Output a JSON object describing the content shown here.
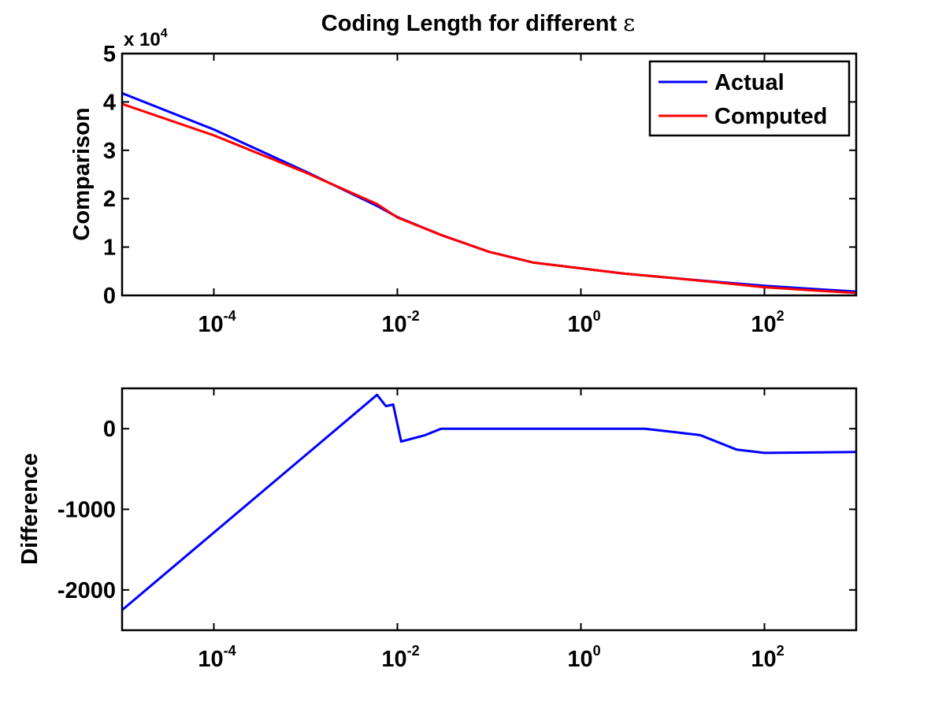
{
  "figure": {
    "title_text": "Coding Length for different ",
    "title_symbol": "ε"
  },
  "chart_data": [
    {
      "type": "line",
      "title": "Coding Length for different ε",
      "xlabel": "",
      "ylabel": "Comparison",
      "xscale": "log",
      "xlim": [
        1e-05,
        1000
      ],
      "ylim": [
        0,
        50000
      ],
      "y_multiplier": "x 10^4",
      "y_multiplier_base": "x 10",
      "y_multiplier_exp": "4",
      "yticks": [
        0,
        1,
        2,
        3,
        4,
        5
      ],
      "xticks": [
        {
          "value": 0.0001,
          "base": "10",
          "exp": "-4"
        },
        {
          "value": 0.01,
          "base": "10",
          "exp": "-2"
        },
        {
          "value": 1,
          "base": "10",
          "exp": "0"
        },
        {
          "value": 100,
          "base": "10",
          "exp": "2"
        }
      ],
      "grid": false,
      "legend_position": "top-right",
      "series": [
        {
          "name": "Actual",
          "color": "#0000ff",
          "x": [
            1e-05,
            0.0001,
            0.001,
            0.006,
            0.01,
            0.03,
            0.1,
            0.3,
            1,
            3,
            10,
            30,
            100,
            300,
            1000
          ],
          "y": [
            41800,
            34300,
            25600,
            18500,
            16200,
            12500,
            9000,
            6800,
            5600,
            4500,
            3600,
            2800,
            2000,
            1400,
            800
          ]
        },
        {
          "name": "Computed",
          "color": "#ff0000",
          "x": [
            1e-05,
            0.0001,
            0.001,
            0.006,
            0.01,
            0.03,
            0.1,
            0.3,
            1,
            3,
            10,
            30,
            100,
            300,
            1000
          ],
          "y": [
            39600,
            33100,
            25400,
            18900,
            16100,
            12500,
            9000,
            6800,
            5600,
            4500,
            3600,
            2700,
            1700,
            1100,
            500
          ]
        }
      ]
    },
    {
      "type": "line",
      "title": "",
      "xlabel": "",
      "ylabel": "Difference",
      "xscale": "log",
      "xlim": [
        1e-05,
        1000
      ],
      "ylim": [
        -2500,
        500
      ],
      "yticks": [
        -2000,
        -1000,
        0
      ],
      "ytick_labels": [
        "-2000",
        "-1000",
        "0"
      ],
      "xticks": [
        {
          "value": 0.0001,
          "base": "10",
          "exp": "-4"
        },
        {
          "value": 0.01,
          "base": "10",
          "exp": "-2"
        },
        {
          "value": 1,
          "base": "10",
          "exp": "0"
        },
        {
          "value": 100,
          "base": "10",
          "exp": "2"
        }
      ],
      "grid": false,
      "series": [
        {
          "color": "#0000ff",
          "x": [
            1e-05,
            0.006,
            0.0075,
            0.009,
            0.011,
            0.02,
            0.03,
            0.1,
            1,
            5,
            10,
            20,
            50,
            100,
            1000
          ],
          "y": [
            -2250,
            420,
            280,
            300,
            -160,
            -80,
            0,
            0,
            0,
            0,
            -40,
            -80,
            -260,
            -300,
            -290
          ]
        }
      ]
    }
  ]
}
